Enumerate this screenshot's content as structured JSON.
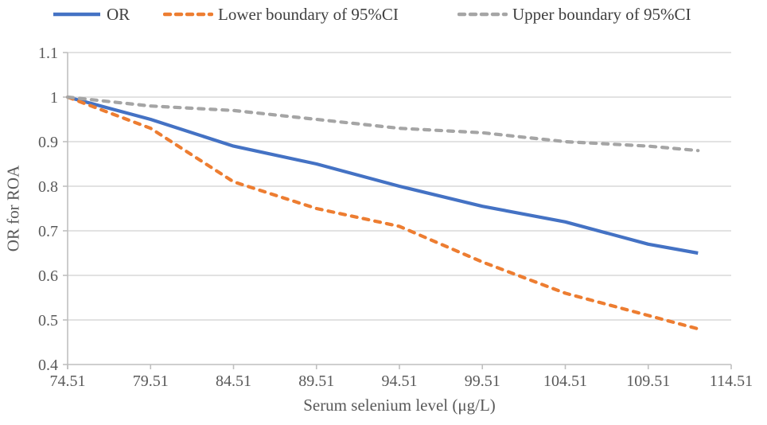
{
  "legend": {
    "items": [
      {
        "label": "OR",
        "color": "#4472C4",
        "dash": "solid"
      },
      {
        "label": "Lower boundary of 95%CI",
        "color": "#ED7D31",
        "dash": "dashed"
      },
      {
        "label": "Upper boundary of 95%CI",
        "color": "#A5A5A5",
        "dash": "dashed"
      }
    ]
  },
  "chart_data": {
    "type": "line",
    "title": "",
    "xlabel": "Serum selenium level (μg/L)",
    "ylabel": "OR for ROA",
    "xlim": [
      74.51,
      114.51
    ],
    "ylim": [
      0.4,
      1.1
    ],
    "grid": "horizontal",
    "legend_position": "top",
    "x_ticks": [
      74.51,
      79.51,
      84.51,
      89.51,
      94.51,
      99.51,
      104.51,
      109.51,
      114.51
    ],
    "x_tick_labels": [
      "74.51",
      "79.51",
      "84.51",
      "89.51",
      "94.51",
      "99.51",
      "104.51",
      "109.51",
      "114.51"
    ],
    "y_ticks": [
      0.4,
      0.5,
      0.6,
      0.7,
      0.8,
      0.9,
      1.0,
      1.1
    ],
    "y_tick_labels": [
      "0.4",
      "0.5",
      "0.6",
      "0.7",
      "0.8",
      "0.9",
      "1",
      "1.1"
    ],
    "x": [
      74.51,
      79.51,
      84.51,
      89.51,
      94.51,
      99.51,
      104.51,
      109.51,
      112.51
    ],
    "series": [
      {
        "name": "OR",
        "color": "#4472C4",
        "style": "solid",
        "values": [
          1.0,
          0.95,
          0.89,
          0.85,
          0.8,
          0.755,
          0.72,
          0.67,
          0.65
        ]
      },
      {
        "name": "Lower boundary of 95%CI",
        "color": "#ED7D31",
        "style": "dashed",
        "values": [
          1.0,
          0.93,
          0.81,
          0.75,
          0.71,
          0.63,
          0.56,
          0.51,
          0.48
        ]
      },
      {
        "name": "Upper boundary of 95%CI",
        "color": "#A5A5A5",
        "style": "dashed",
        "values": [
          1.0,
          0.98,
          0.97,
          0.95,
          0.93,
          0.92,
          0.9,
          0.89,
          0.88
        ]
      }
    ]
  },
  "colors": {
    "gridline": "#D9D9D9",
    "axis": "#BFBFBF",
    "tick_text": "#595959",
    "legend_text": "#404040"
  }
}
